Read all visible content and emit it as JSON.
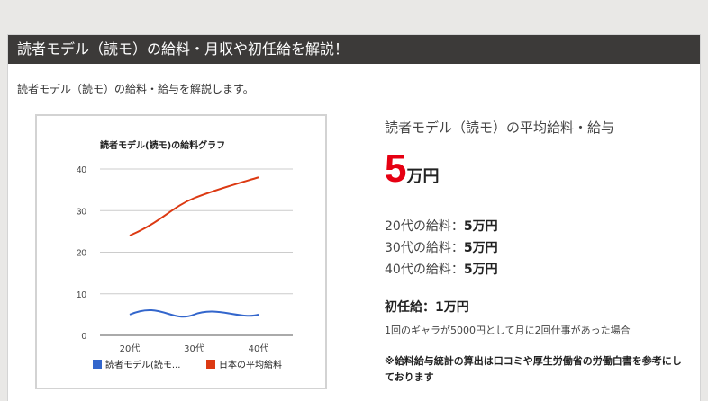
{
  "header": {
    "title": "読者モデル（読モ）の給料・月収や初任給を解説！"
  },
  "intro": "読者モデル（読モ）の給料・給与を解説します。",
  "chart_data": {
    "type": "line",
    "title": "読者モデル(読モ)の給料グラフ",
    "categories": [
      "20代",
      "30代",
      "40代"
    ],
    "ylim": [
      0,
      40
    ],
    "yticks": [
      0,
      10,
      20,
      30,
      40
    ],
    "grid": true,
    "legend_position": "bottom",
    "series": [
      {
        "name": "読者モデル(読モ...",
        "values": [
          5,
          5,
          5
        ],
        "color": "#3366cc"
      },
      {
        "name": "日本の平均給料",
        "values": [
          24,
          33,
          38
        ],
        "color": "#dc3912"
      }
    ]
  },
  "summary": {
    "heading": "読者モデル（読モ）の平均給料・給与",
    "average_value": "5",
    "average_unit": "万円",
    "ages": [
      {
        "label": "20代の給料：",
        "value": "5万円"
      },
      {
        "label": "30代の給料：",
        "value": "5万円"
      },
      {
        "label": "40代の給料：",
        "value": "5万円"
      }
    ],
    "starting_salary": "初任給：1万円",
    "starting_note": "1回のギャラが5000円として月に2回仕事があった場合",
    "footnote": "※給料給与統計の算出は口コミや厚生労働省の労働白書を参考にしております"
  },
  "colors": {
    "accent": "#e60012",
    "title_bar": "#3c3a39"
  }
}
